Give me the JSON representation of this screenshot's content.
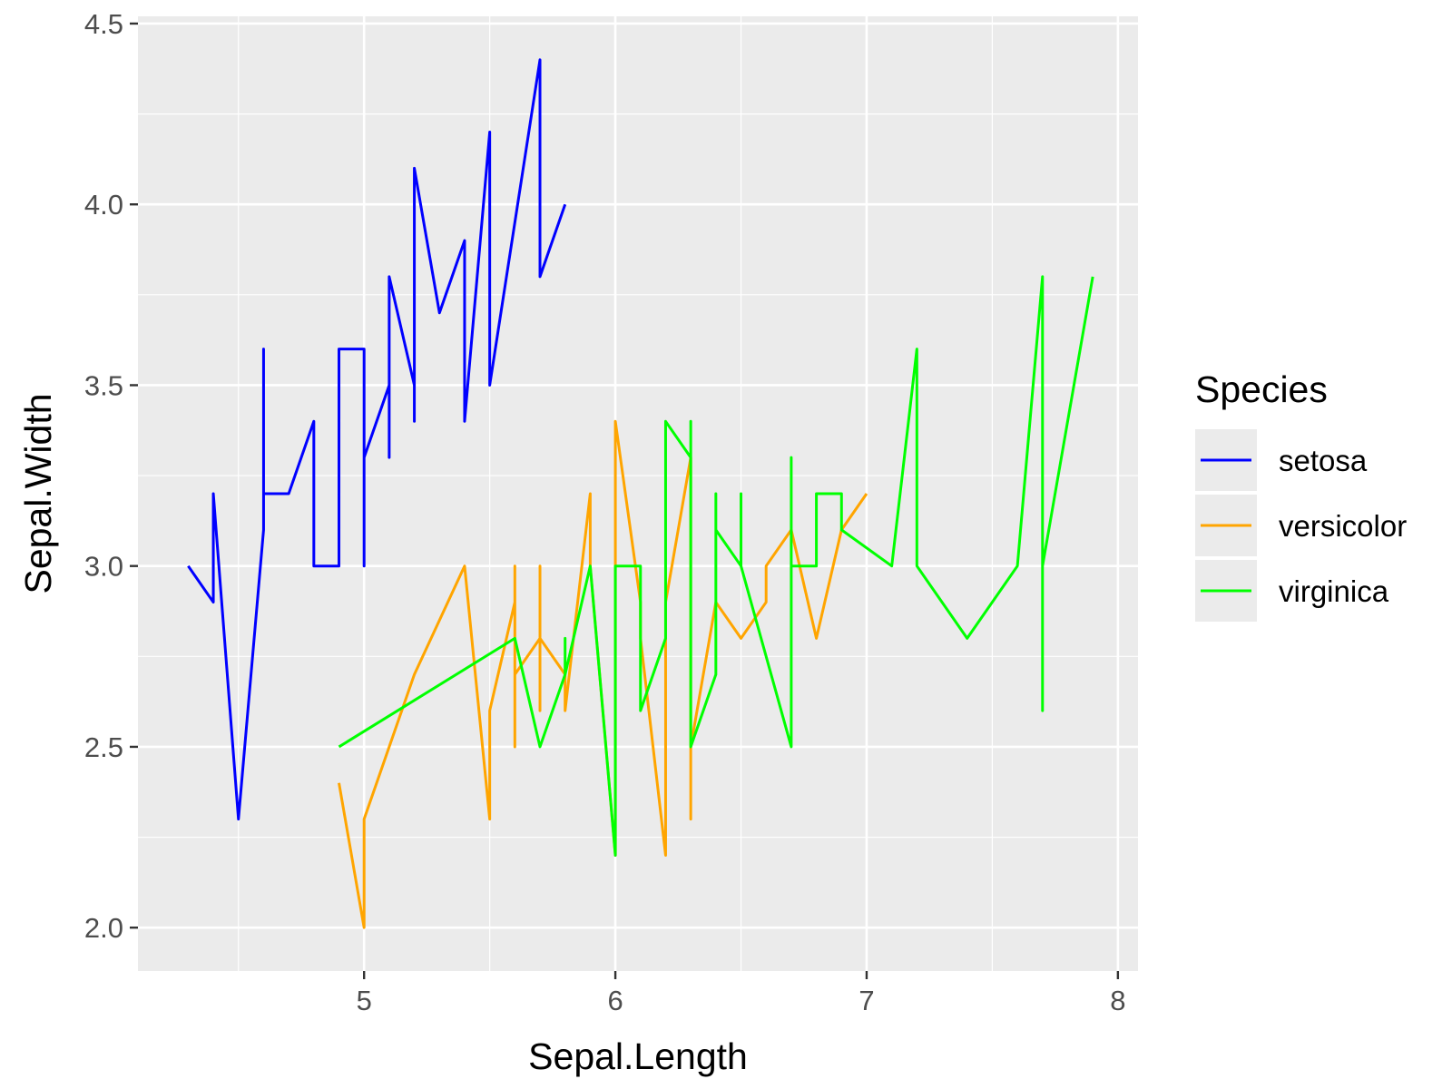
{
  "chart_data": {
    "type": "line",
    "title": "",
    "xlabel": "Sepal.Length",
    "ylabel": "Sepal.Width",
    "xlim": [
      4.1,
      8.08
    ],
    "ylim": [
      1.88,
      4.52
    ],
    "x_ticks": [
      5,
      6,
      7,
      8
    ],
    "y_ticks": [
      2.0,
      2.5,
      3.0,
      3.5,
      4.0,
      4.5
    ],
    "x_tick_labels": [
      "5",
      "6",
      "7",
      "8"
    ],
    "y_tick_labels": [
      "2.0",
      "2.5",
      "3.0",
      "3.5",
      "4.0",
      "4.5"
    ],
    "grid": true,
    "panel_background": "#ebebeb",
    "grid_color": "#ffffff",
    "legend": {
      "title": "Species",
      "position": "right",
      "entries": [
        {
          "label": "setosa",
          "color": "#0000ff"
        },
        {
          "label": "versicolor",
          "color": "#ffa500"
        },
        {
          "label": "virginica",
          "color": "#00ff00"
        }
      ]
    },
    "series": [
      {
        "name": "setosa",
        "color": "#0000ff",
        "points": [
          [
            4.3,
            3.0
          ],
          [
            4.4,
            2.9
          ],
          [
            4.4,
            3.2
          ],
          [
            4.5,
            2.3
          ],
          [
            4.6,
            3.1
          ],
          [
            4.6,
            3.6
          ],
          [
            4.6,
            3.2
          ],
          [
            4.7,
            3.2
          ],
          [
            4.8,
            3.4
          ],
          [
            4.8,
            3.0
          ],
          [
            4.9,
            3.0
          ],
          [
            4.9,
            3.6
          ],
          [
            5.0,
            3.6
          ],
          [
            5.0,
            3.0
          ],
          [
            5.0,
            3.3
          ],
          [
            5.1,
            3.5
          ],
          [
            5.1,
            3.3
          ],
          [
            5.1,
            3.8
          ],
          [
            5.2,
            3.5
          ],
          [
            5.2,
            3.4
          ],
          [
            5.2,
            4.1
          ],
          [
            5.3,
            3.7
          ],
          [
            5.4,
            3.9
          ],
          [
            5.4,
            3.4
          ],
          [
            5.5,
            4.2
          ],
          [
            5.5,
            3.5
          ],
          [
            5.7,
            4.4
          ],
          [
            5.7,
            3.8
          ],
          [
            5.8,
            4.0
          ]
        ]
      },
      {
        "name": "versicolor",
        "color": "#ffa500",
        "points": [
          [
            4.9,
            2.4
          ],
          [
            5.0,
            2.0
          ],
          [
            5.0,
            2.3
          ],
          [
            5.2,
            2.7
          ],
          [
            5.4,
            3.0
          ],
          [
            5.5,
            2.3
          ],
          [
            5.5,
            2.6
          ],
          [
            5.6,
            2.9
          ],
          [
            5.6,
            2.5
          ],
          [
            5.6,
            3.0
          ],
          [
            5.6,
            2.7
          ],
          [
            5.7,
            2.8
          ],
          [
            5.7,
            2.6
          ],
          [
            5.7,
            3.0
          ],
          [
            5.7,
            2.8
          ],
          [
            5.8,
            2.7
          ],
          [
            5.8,
            2.6
          ],
          [
            5.9,
            3.2
          ],
          [
            5.9,
            3.0
          ],
          [
            6.0,
            2.2
          ],
          [
            6.0,
            3.4
          ],
          [
            6.1,
            2.9
          ],
          [
            6.1,
            2.8
          ],
          [
            6.2,
            2.2
          ],
          [
            6.2,
            2.9
          ],
          [
            6.3,
            3.3
          ],
          [
            6.3,
            2.3
          ],
          [
            6.3,
            2.5
          ],
          [
            6.4,
            2.9
          ],
          [
            6.5,
            2.8
          ],
          [
            6.6,
            2.9
          ],
          [
            6.6,
            3.0
          ],
          [
            6.7,
            3.1
          ],
          [
            6.8,
            2.8
          ],
          [
            6.9,
            3.1
          ],
          [
            7.0,
            3.2
          ]
        ]
      },
      {
        "name": "virginica",
        "color": "#00ff00",
        "points": [
          [
            4.9,
            2.5
          ],
          [
            5.6,
            2.8
          ],
          [
            5.7,
            2.5
          ],
          [
            5.8,
            2.7
          ],
          [
            5.8,
            2.8
          ],
          [
            5.8,
            2.7
          ],
          [
            5.9,
            3.0
          ],
          [
            6.0,
            2.2
          ],
          [
            6.0,
            3.0
          ],
          [
            6.1,
            3.0
          ],
          [
            6.1,
            2.6
          ],
          [
            6.2,
            2.8
          ],
          [
            6.2,
            3.4
          ],
          [
            6.3,
            3.3
          ],
          [
            6.3,
            3.4
          ],
          [
            6.3,
            2.5
          ],
          [
            6.4,
            2.7
          ],
          [
            6.4,
            3.2
          ],
          [
            6.4,
            3.1
          ],
          [
            6.5,
            3.0
          ],
          [
            6.5,
            3.2
          ],
          [
            6.5,
            3.0
          ],
          [
            6.7,
            2.5
          ],
          [
            6.7,
            3.3
          ],
          [
            6.7,
            3.0
          ],
          [
            6.8,
            3.0
          ],
          [
            6.8,
            3.2
          ],
          [
            6.9,
            3.2
          ],
          [
            6.9,
            3.1
          ],
          [
            7.1,
            3.0
          ],
          [
            7.2,
            3.6
          ],
          [
            7.2,
            3.0
          ],
          [
            7.4,
            2.8
          ],
          [
            7.6,
            3.0
          ],
          [
            7.7,
            3.8
          ],
          [
            7.7,
            2.6
          ],
          [
            7.7,
            3.0
          ],
          [
            7.9,
            3.8
          ]
        ]
      }
    ]
  }
}
